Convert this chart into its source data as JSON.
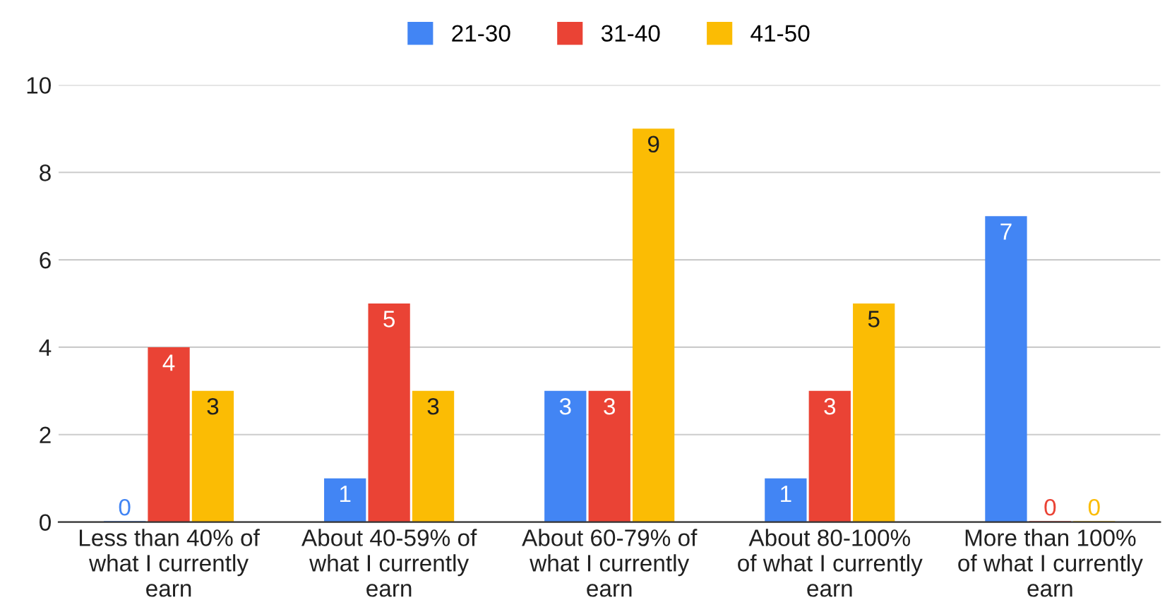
{
  "chart_data": {
    "type": "bar",
    "categories": [
      "Less than 40% of\nwhat I currently\nearn",
      "About 40-59% of\nwhat I currently\nearn",
      "About 60-79% of\nwhat I currently\nearn",
      "About 80-100%\nof what I currently\nearn",
      "More than 100%\nof what I currently\nearn"
    ],
    "series": [
      {
        "name": "21-30",
        "color": "#4285f4",
        "values": [
          0,
          1,
          3,
          1,
          7
        ]
      },
      {
        "name": "31-40",
        "color": "#ea4335",
        "values": [
          4,
          5,
          3,
          3,
          0
        ]
      },
      {
        "name": "41-50",
        "color": "#fbbc04",
        "values": [
          3,
          3,
          9,
          5,
          0
        ]
      }
    ],
    "ylim": [
      0,
      10
    ],
    "yticks": [
      0,
      2,
      4,
      6,
      8,
      10
    ],
    "grid": "y",
    "legend": "top",
    "data_labels": true
  }
}
